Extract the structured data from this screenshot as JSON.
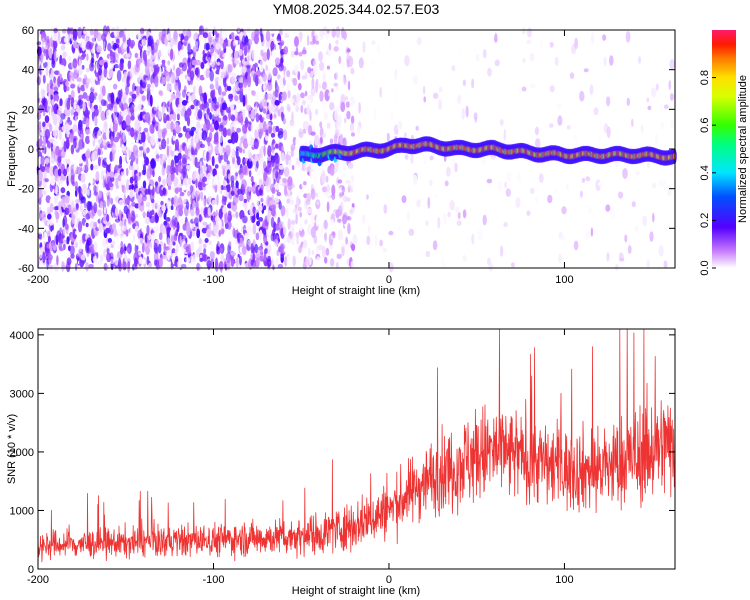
{
  "figure_title": "YM08.2025.344.02.57.E03",
  "chart_data": [
    {
      "type": "heatmap",
      "title": "YM08.2025.344.02.57.E03",
      "xlabel": "Height of straight line (km)",
      "ylabel": "Frequency (Hz)",
      "xlim": [
        -200,
        163
      ],
      "ylim": [
        -60,
        60
      ],
      "xticks": [
        -200,
        -100,
        0,
        100
      ],
      "yticks": [
        -60,
        -40,
        -20,
        0,
        20,
        40,
        60
      ],
      "colorbar": {
        "label": "Normalized spectral amplitude",
        "range": [
          0,
          1
        ],
        "ticks": [
          0.0,
          0.2,
          0.4,
          0.6,
          0.8
        ],
        "colormap": "rainbow (white-violet-blue-cyan-green-yellow-red-pink)"
      },
      "regions": [
        {
          "x_range": [
            -200,
            -60
          ],
          "description": "dense noise",
          "amplitude_range": [
            0.0,
            0.15
          ]
        },
        {
          "x_range": [
            -60,
            -20
          ],
          "description": "fading noise",
          "amplitude_range": [
            0.0,
            0.08
          ]
        },
        {
          "x_range": [
            -20,
            163
          ],
          "description": "sparse noise",
          "amplitude_range": [
            0.0,
            0.05
          ]
        }
      ],
      "signal_band": {
        "frequency_hz": [
          [
            -50,
            -3
          ],
          [
            -30,
            -2
          ],
          [
            0,
            0
          ],
          [
            10,
            2
          ],
          [
            20,
            2
          ],
          [
            40,
            0
          ],
          [
            60,
            0
          ],
          [
            80,
            -2
          ],
          [
            100,
            -3
          ],
          [
            120,
            -3
          ],
          [
            140,
            -3
          ],
          [
            163,
            -4
          ]
        ],
        "half_width_hz": 3,
        "peak_amplitude": 0.9
      },
      "grid": false
    },
    {
      "type": "line",
      "xlabel": "Height of straight line (km)",
      "ylabel": "SNR (10 * v/v)",
      "xlim": [
        -200,
        163
      ],
      "ylim": [
        0,
        4100
      ],
      "xticks": [
        -200,
        -100,
        0,
        100
      ],
      "yticks": [
        0,
        1000,
        2000,
        3000,
        4000
      ],
      "color": "#ee3333",
      "envelope": {
        "x": [
          -200,
          -150,
          -100,
          -60,
          -40,
          -20,
          0,
          20,
          40,
          50,
          60,
          80,
          100,
          120,
          140,
          163
        ],
        "mean": [
          400,
          450,
          500,
          550,
          600,
          750,
          1000,
          1500,
          1800,
          1950,
          2000,
          1900,
          1700,
          1700,
          1900,
          2200
        ],
        "spread": [
          250,
          280,
          300,
          320,
          380,
          450,
          500,
          650,
          800,
          900,
          900,
          800,
          750,
          800,
          900,
          1000
        ]
      },
      "grid": false
    }
  ]
}
